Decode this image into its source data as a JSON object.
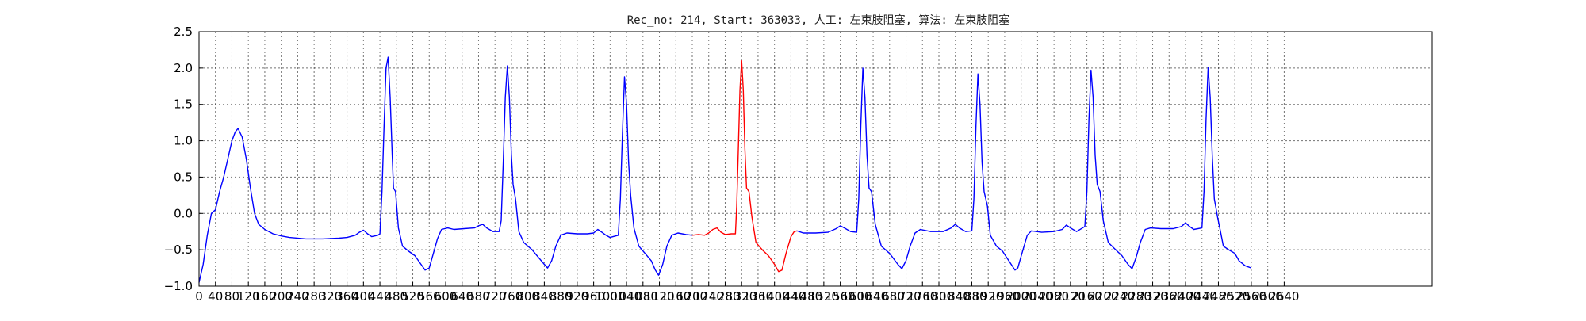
{
  "chart_data": {
    "type": "line",
    "title": "Rec_no: 214, Start: 363033, 人工: 左束肢阻塞, 算法: 左束肢阻塞",
    "xlabel": "",
    "ylabel": "",
    "xlim": [
      0,
      3000
    ],
    "ylim": [
      -1.0,
      2.5
    ],
    "yticks": [
      -1.0,
      -0.5,
      0.0,
      0.5,
      1.0,
      1.5,
      2.0,
      2.5
    ],
    "ytick_labels": [
      "−1.0",
      "−0.5",
      "0.0",
      "0.5",
      "1.0",
      "1.5",
      "2.0",
      "2.5"
    ],
    "xticks": [
      0,
      40,
      80,
      120,
      160,
      200,
      240,
      280,
      320,
      360,
      400,
      440,
      480,
      520,
      560,
      600,
      640,
      680,
      720,
      760,
      800,
      840,
      880,
      920,
      960,
      1000,
      1040,
      1080,
      1120,
      1160,
      1200,
      1240,
      1280,
      1320,
      1360,
      1400,
      1440,
      1480,
      1520,
      1560,
      1600,
      1640,
      1680,
      1720,
      1760,
      1800,
      1840,
      1880,
      1920,
      1960,
      2000,
      2040,
      2080,
      2120,
      2160,
      2200,
      2240,
      2280,
      2320,
      2360,
      2400,
      2440,
      2480,
      2520,
      2560,
      2600,
      2640
    ],
    "grid": true,
    "series": [
      {
        "color": "#0000ff",
        "points": [
          [
            0,
            -0.95
          ],
          [
            10,
            -0.7
          ],
          [
            20,
            -0.3
          ],
          [
            30,
            0.0
          ],
          [
            40,
            0.05
          ],
          [
            50,
            0.3
          ],
          [
            60,
            0.5
          ],
          [
            70,
            0.75
          ],
          [
            80,
            1.0
          ],
          [
            88,
            1.12
          ],
          [
            95,
            1.17
          ],
          [
            105,
            1.05
          ],
          [
            115,
            0.75
          ],
          [
            125,
            0.35
          ],
          [
            135,
            0.0
          ],
          [
            145,
            -0.15
          ],
          [
            160,
            -0.22
          ],
          [
            180,
            -0.28
          ],
          [
            200,
            -0.31
          ],
          [
            220,
            -0.33
          ],
          [
            260,
            -0.35
          ],
          [
            300,
            -0.35
          ],
          [
            340,
            -0.34
          ],
          [
            360,
            -0.33
          ],
          [
            380,
            -0.3
          ],
          [
            390,
            -0.26
          ],
          [
            400,
            -0.23
          ],
          [
            410,
            -0.28
          ],
          [
            420,
            -0.32
          ],
          [
            435,
            -0.3
          ],
          [
            440,
            -0.28
          ],
          [
            445,
            0.3
          ],
          [
            450,
            1.2
          ],
          [
            455,
            2.0
          ],
          [
            460,
            2.15
          ],
          [
            465,
            1.6
          ],
          [
            470,
            0.8
          ],
          [
            473,
            0.35
          ],
          [
            478,
            0.3
          ],
          [
            485,
            -0.2
          ],
          [
            495,
            -0.45
          ],
          [
            510,
            -0.52
          ],
          [
            525,
            -0.58
          ],
          [
            540,
            -0.7
          ],
          [
            550,
            -0.78
          ],
          [
            560,
            -0.75
          ],
          [
            570,
            -0.55
          ],
          [
            580,
            -0.35
          ],
          [
            590,
            -0.22
          ],
          [
            605,
            -0.2
          ],
          [
            620,
            -0.22
          ],
          [
            645,
            -0.21
          ],
          [
            670,
            -0.2
          ],
          [
            680,
            -0.17
          ],
          [
            690,
            -0.15
          ],
          [
            700,
            -0.2
          ],
          [
            715,
            -0.25
          ],
          [
            730,
            -0.25
          ],
          [
            735,
            -0.1
          ],
          [
            740,
            0.7
          ],
          [
            745,
            1.6
          ],
          [
            750,
            2.03
          ],
          [
            755,
            1.6
          ],
          [
            760,
            0.8
          ],
          [
            764,
            0.4
          ],
          [
            770,
            0.2
          ],
          [
            778,
            -0.25
          ],
          [
            790,
            -0.4
          ],
          [
            810,
            -0.5
          ],
          [
            825,
            -0.6
          ],
          [
            840,
            -0.7
          ],
          [
            848,
            -0.75
          ],
          [
            858,
            -0.65
          ],
          [
            868,
            -0.45
          ],
          [
            880,
            -0.3
          ],
          [
            895,
            -0.27
          ],
          [
            920,
            -0.28
          ],
          [
            945,
            -0.28
          ],
          [
            960,
            -0.27
          ],
          [
            970,
            -0.22
          ],
          [
            980,
            -0.26
          ],
          [
            990,
            -0.3
          ],
          [
            1000,
            -0.33
          ],
          [
            1020,
            -0.3
          ],
          [
            1025,
            0.2
          ],
          [
            1030,
            1.1
          ],
          [
            1035,
            1.88
          ],
          [
            1040,
            1.5
          ],
          [
            1045,
            0.7
          ],
          [
            1050,
            0.25
          ],
          [
            1058,
            -0.2
          ],
          [
            1070,
            -0.45
          ],
          [
            1085,
            -0.55
          ],
          [
            1100,
            -0.65
          ],
          [
            1110,
            -0.78
          ],
          [
            1118,
            -0.85
          ],
          [
            1128,
            -0.7
          ],
          [
            1138,
            -0.45
          ],
          [
            1150,
            -0.3
          ],
          [
            1165,
            -0.27
          ],
          [
            1185,
            -0.29
          ],
          [
            1200,
            -0.3
          ]
        ]
      },
      {
        "color": "#ff0000",
        "points": [
          [
            1200,
            -0.3
          ],
          [
            1215,
            -0.29
          ],
          [
            1230,
            -0.3
          ],
          [
            1240,
            -0.27
          ],
          [
            1250,
            -0.22
          ],
          [
            1260,
            -0.2
          ],
          [
            1270,
            -0.26
          ],
          [
            1280,
            -0.29
          ],
          [
            1295,
            -0.28
          ],
          [
            1305,
            -0.28
          ],
          [
            1308,
            0.1
          ],
          [
            1312,
            0.9
          ],
          [
            1316,
            1.7
          ],
          [
            1320,
            2.1
          ],
          [
            1324,
            1.7
          ],
          [
            1328,
            0.9
          ],
          [
            1332,
            0.35
          ],
          [
            1338,
            0.3
          ],
          [
            1345,
            -0.05
          ],
          [
            1355,
            -0.4
          ],
          [
            1370,
            -0.5
          ],
          [
            1385,
            -0.58
          ],
          [
            1400,
            -0.7
          ],
          [
            1410,
            -0.8
          ],
          [
            1418,
            -0.78
          ],
          [
            1428,
            -0.55
          ],
          [
            1440,
            -0.32
          ],
          [
            1448,
            -0.25
          ],
          [
            1455,
            -0.24
          ]
        ]
      },
      {
        "color": "#0000ff",
        "points": [
          [
            1455,
            -0.24
          ],
          [
            1470,
            -0.27
          ],
          [
            1500,
            -0.27
          ],
          [
            1530,
            -0.26
          ],
          [
            1550,
            -0.21
          ],
          [
            1560,
            -0.17
          ],
          [
            1570,
            -0.2
          ],
          [
            1585,
            -0.25
          ],
          [
            1600,
            -0.26
          ],
          [
            1605,
            0.2
          ],
          [
            1610,
            1.2
          ],
          [
            1615,
            2.0
          ],
          [
            1620,
            1.6
          ],
          [
            1625,
            0.8
          ],
          [
            1630,
            0.35
          ],
          [
            1636,
            0.3
          ],
          [
            1645,
            -0.15
          ],
          [
            1660,
            -0.45
          ],
          [
            1680,
            -0.55
          ],
          [
            1700,
            -0.7
          ],
          [
            1710,
            -0.76
          ],
          [
            1720,
            -0.65
          ],
          [
            1730,
            -0.45
          ],
          [
            1742,
            -0.27
          ],
          [
            1755,
            -0.22
          ],
          [
            1780,
            -0.25
          ],
          [
            1810,
            -0.25
          ],
          [
            1830,
            -0.2
          ],
          [
            1840,
            -0.15
          ],
          [
            1850,
            -0.2
          ],
          [
            1865,
            -0.25
          ],
          [
            1880,
            -0.24
          ],
          [
            1885,
            0.2
          ],
          [
            1890,
            1.2
          ],
          [
            1895,
            1.92
          ],
          [
            1900,
            1.5
          ],
          [
            1905,
            0.7
          ],
          [
            1910,
            0.3
          ],
          [
            1918,
            0.1
          ],
          [
            1925,
            -0.3
          ],
          [
            1940,
            -0.45
          ],
          [
            1955,
            -0.52
          ],
          [
            1970,
            -0.65
          ],
          [
            1985,
            -0.78
          ],
          [
            1992,
            -0.75
          ],
          [
            2002,
            -0.55
          ],
          [
            2015,
            -0.3
          ],
          [
            2025,
            -0.24
          ],
          [
            2050,
            -0.26
          ],
          [
            2080,
            -0.25
          ],
          [
            2100,
            -0.22
          ],
          [
            2110,
            -0.16
          ],
          [
            2120,
            -0.2
          ],
          [
            2135,
            -0.25
          ],
          [
            2155,
            -0.18
          ],
          [
            2160,
            0.3
          ],
          [
            2165,
            1.3
          ],
          [
            2170,
            1.97
          ],
          [
            2175,
            1.6
          ],
          [
            2180,
            0.8
          ],
          [
            2185,
            0.4
          ],
          [
            2192,
            0.3
          ],
          [
            2200,
            -0.1
          ],
          [
            2212,
            -0.4
          ],
          [
            2230,
            -0.5
          ],
          [
            2245,
            -0.58
          ],
          [
            2260,
            -0.7
          ],
          [
            2270,
            -0.76
          ],
          [
            2280,
            -0.6
          ],
          [
            2290,
            -0.4
          ],
          [
            2302,
            -0.22
          ],
          [
            2315,
            -0.2
          ],
          [
            2340,
            -0.21
          ],
          [
            2370,
            -0.21
          ],
          [
            2390,
            -0.18
          ],
          [
            2400,
            -0.13
          ],
          [
            2410,
            -0.18
          ],
          [
            2420,
            -0.22
          ],
          [
            2440,
            -0.2
          ],
          [
            2445,
            0.3
          ],
          [
            2450,
            1.3
          ],
          [
            2455,
            2.01
          ],
          [
            2460,
            1.6
          ],
          [
            2465,
            0.8
          ],
          [
            2470,
            0.2
          ],
          [
            2478,
            -0.05
          ],
          [
            2485,
            -0.25
          ],
          [
            2492,
            -0.45
          ],
          [
            2505,
            -0.5
          ],
          [
            2520,
            -0.55
          ],
          [
            2530,
            -0.65
          ],
          [
            2545,
            -0.72
          ],
          [
            2560,
            -0.75
          ]
        ]
      }
    ]
  }
}
